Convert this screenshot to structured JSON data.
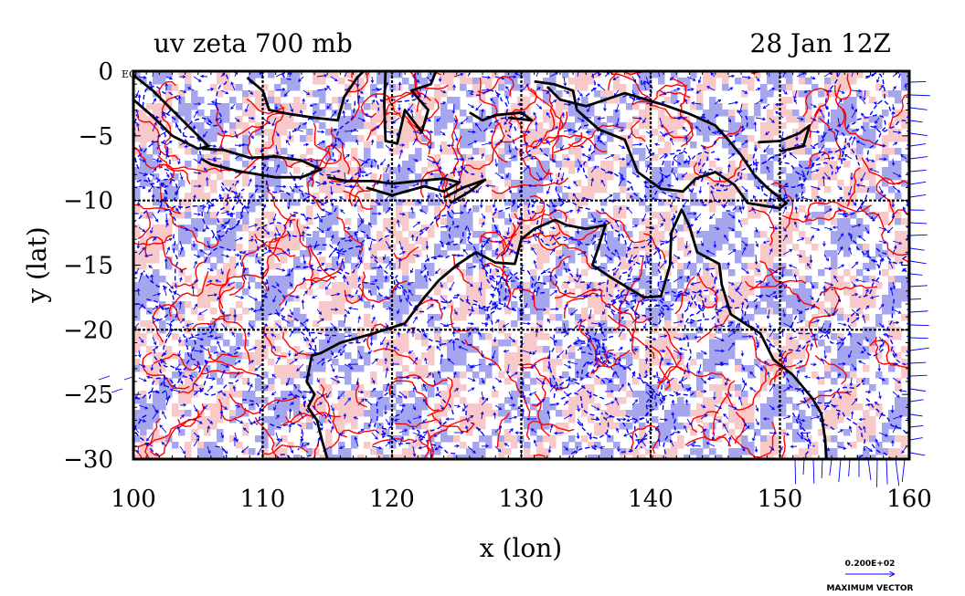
{
  "header": {
    "title_left": "uv zeta 700 mb",
    "title_right": "28 Jan 12Z"
  },
  "corner_label": "EQ",
  "chart_data": {
    "type": "map",
    "xlabel": "x (lon)",
    "ylabel": "y (lat)",
    "xlim": [
      100,
      160
    ],
    "ylim": [
      -30,
      0
    ],
    "x_ticks": [
      "100",
      "110",
      "120",
      "130",
      "140",
      "150",
      "160"
    ],
    "y_ticks": [
      "0",
      "−5",
      "−10",
      "−15",
      "−20",
      "−25",
      "−30"
    ],
    "x_tick_values": [
      100,
      110,
      120,
      130,
      140,
      150,
      160
    ],
    "y_tick_values": [
      0,
      -5,
      -10,
      -15,
      -20,
      -25,
      -30
    ],
    "grid_lon": [
      110,
      120,
      130,
      140,
      150
    ],
    "grid_lat": [
      -10,
      -20
    ],
    "colors": {
      "positive_fill": "#f7c9c9",
      "positive_contour": "#ff0000",
      "negative_fill": "#a6a6ee",
      "negative_contour": "#0000ff",
      "vectors": "#0000ff",
      "coastline": "#000000",
      "grid": "#000000"
    }
  },
  "legend": {
    "value": "0.200E+02",
    "label": "MAXIMUM VECTOR"
  }
}
